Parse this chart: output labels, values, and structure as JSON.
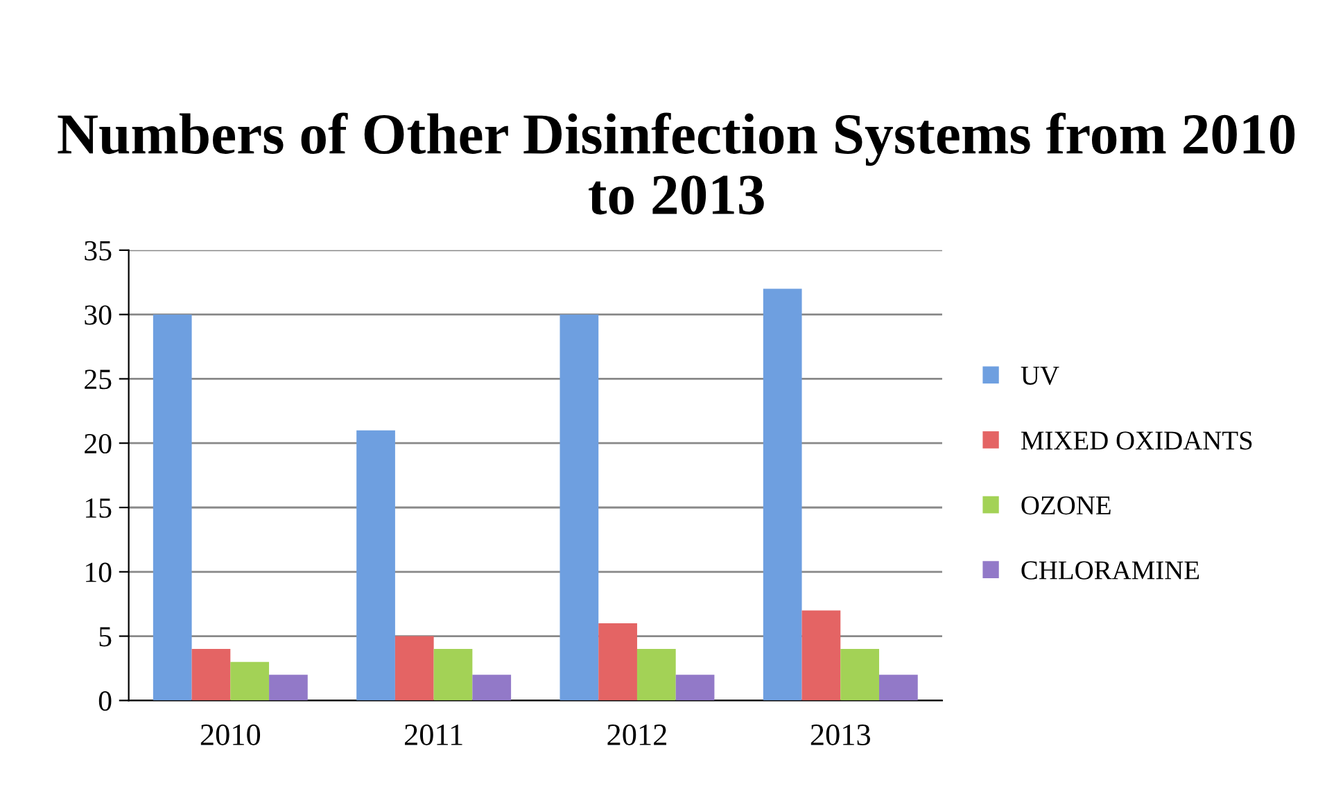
{
  "chart_data": {
    "type": "bar",
    "title": "Numbers of Other Disinfection Systems from 2010 to 2013",
    "categories": [
      "2010",
      "2011",
      "2012",
      "2013"
    ],
    "series": [
      {
        "name": "UV",
        "color": "#6e9fe0",
        "values": [
          30,
          21,
          30,
          32
        ]
      },
      {
        "name": "MIXED OXIDANTS",
        "color": "#e46464",
        "values": [
          4,
          5,
          6,
          7
        ]
      },
      {
        "name": "OZONE",
        "color": "#a3d256",
        "values": [
          3,
          4,
          4,
          4
        ]
      },
      {
        "name": "CHLORAMINE",
        "color": "#9279c8",
        "values": [
          2,
          2,
          2,
          2
        ]
      }
    ],
    "ylim": [
      0,
      35
    ],
    "yticks": [
      0,
      5,
      10,
      15,
      20,
      25,
      30,
      35
    ],
    "grid": "y",
    "legend": "right"
  }
}
